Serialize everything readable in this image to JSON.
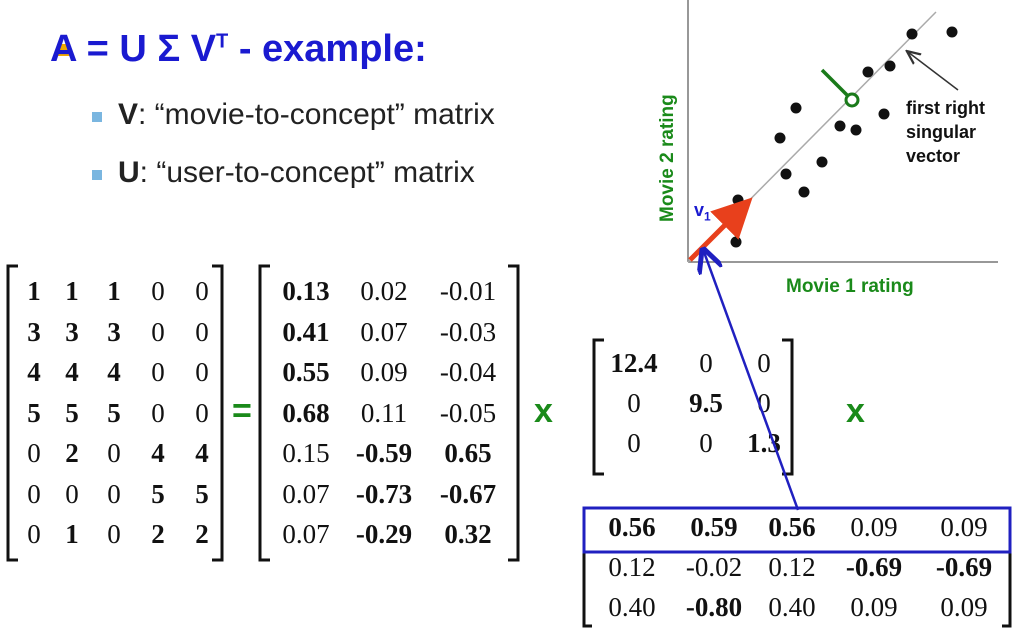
{
  "title": {
    "text": "A = U Σ V",
    "sup": "T",
    "suffix": " - example:"
  },
  "bullets": [
    {
      "bold": "V",
      "rest": ": “movie-to-concept” matrix"
    },
    {
      "bold": "U",
      "rest": ": “user-to-concept” matrix"
    }
  ],
  "operators": {
    "equals": "=",
    "times1": "x",
    "times2": "x"
  },
  "matrixA": [
    [
      [
        "1",
        1
      ],
      [
        "1",
        1
      ],
      [
        "1",
        1
      ],
      [
        "0",
        0
      ],
      [
        "0",
        0
      ]
    ],
    [
      [
        "3",
        1
      ],
      [
        "3",
        1
      ],
      [
        "3",
        1
      ],
      [
        "0",
        0
      ],
      [
        "0",
        0
      ]
    ],
    [
      [
        "4",
        1
      ],
      [
        "4",
        1
      ],
      [
        "4",
        1
      ],
      [
        "0",
        0
      ],
      [
        "0",
        0
      ]
    ],
    [
      [
        "5",
        1
      ],
      [
        "5",
        1
      ],
      [
        "5",
        1
      ],
      [
        "0",
        0
      ],
      [
        "0",
        0
      ]
    ],
    [
      [
        "0",
        0
      ],
      [
        "2",
        1
      ],
      [
        "0",
        0
      ],
      [
        "4",
        1
      ],
      [
        "4",
        1
      ]
    ],
    [
      [
        "0",
        0
      ],
      [
        "0",
        0
      ],
      [
        "0",
        0
      ],
      [
        "5",
        1
      ],
      [
        "5",
        1
      ]
    ],
    [
      [
        "0",
        0
      ],
      [
        "1",
        1
      ],
      [
        "0",
        0
      ],
      [
        "2",
        1
      ],
      [
        "2",
        1
      ]
    ]
  ],
  "matrixU": [
    [
      [
        "0.13",
        1
      ],
      [
        "0.02",
        0
      ],
      [
        "-0.01",
        0
      ]
    ],
    [
      [
        "0.41",
        1
      ],
      [
        "0.07",
        0
      ],
      [
        "-0.03",
        0
      ]
    ],
    [
      [
        "0.55",
        1
      ],
      [
        "0.09",
        0
      ],
      [
        "-0.04",
        0
      ]
    ],
    [
      [
        "0.68",
        1
      ],
      [
        "0.11",
        0
      ],
      [
        "-0.05",
        0
      ]
    ],
    [
      [
        "0.15",
        0
      ],
      [
        "-0.59",
        1
      ],
      [
        "0.65",
        1
      ]
    ],
    [
      [
        "0.07",
        0
      ],
      [
        "-0.73",
        1
      ],
      [
        "-0.67",
        1
      ]
    ],
    [
      [
        "0.07",
        0
      ],
      [
        "-0.29",
        1
      ],
      [
        "0.32",
        1
      ]
    ]
  ],
  "matrixS": [
    [
      [
        "12.4",
        1
      ],
      [
        "0",
        0
      ],
      [
        "0",
        0
      ]
    ],
    [
      [
        "0",
        0
      ],
      [
        "9.5",
        1
      ],
      [
        "0",
        0
      ]
    ],
    [
      [
        "0",
        0
      ],
      [
        "0",
        0
      ],
      [
        "1.3",
        1
      ]
    ]
  ],
  "matrixVT": [
    [
      [
        "0.56",
        1
      ],
      [
        "0.59",
        1
      ],
      [
        "0.56",
        1
      ],
      [
        "0.09",
        0
      ],
      [
        "0.09",
        0
      ]
    ],
    [
      [
        "0.12",
        0
      ],
      [
        "-0.02",
        0
      ],
      [
        "0.12",
        0
      ],
      [
        "-0.69",
        1
      ],
      [
        "-0.69",
        1
      ]
    ],
    [
      [
        "0.40",
        0
      ],
      [
        "-0.80",
        1
      ],
      [
        "0.40",
        0
      ],
      [
        "0.09",
        0
      ],
      [
        "0.09",
        0
      ]
    ]
  ],
  "plot": {
    "xlabel": "Movie 1 rating",
    "ylabel": "Movie 2 rating",
    "vector_label": "v",
    "vector_sub": "1",
    "annotation": [
      "first right",
      "singular",
      "vector"
    ]
  },
  "colors": {
    "title": "#1a1ad0",
    "green": "#1a8a1a",
    "red": "#e8401c",
    "highlight": "#2020c0"
  }
}
